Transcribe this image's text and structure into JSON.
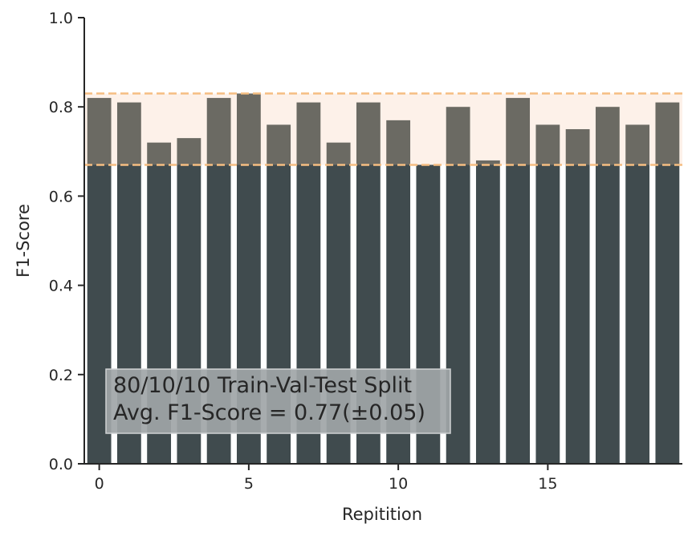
{
  "chart_data": {
    "type": "bar",
    "xlabel": "Repitition",
    "ylabel": "F1-Score",
    "ylim": [
      0,
      1.0
    ],
    "xlim": [
      -0.5,
      19.5
    ],
    "y_ticks": [
      0.0,
      0.2,
      0.4,
      0.6,
      0.8,
      1.0
    ],
    "y_tick_labels": [
      "0.0",
      "0.2",
      "0.4",
      "0.6",
      "0.8",
      "1.0"
    ],
    "x_ticks": [
      0,
      5,
      10,
      15
    ],
    "x_tick_labels": [
      "0",
      "5",
      "10",
      "15"
    ],
    "categories": [
      0,
      1,
      2,
      3,
      4,
      5,
      6,
      7,
      8,
      9,
      10,
      11,
      12,
      13,
      14,
      15,
      16,
      17,
      18,
      19
    ],
    "values": [
      0.82,
      0.81,
      0.72,
      0.73,
      0.82,
      0.83,
      0.76,
      0.81,
      0.72,
      0.81,
      0.77,
      0.67,
      0.8,
      0.68,
      0.82,
      0.76,
      0.75,
      0.8,
      0.76,
      0.81
    ],
    "band": {
      "lower": 0.67,
      "upper": 0.83
    },
    "annotation": {
      "line1": "80/10/10 Train-Val-Test Split",
      "line2": "Avg. F1-Score = 0.77(±0.05)"
    },
    "colors": {
      "bar": "#404b4e",
      "bar_above_band": "#6b6a63",
      "band_fill": "#fdf1e9",
      "band_line": "#f5be82",
      "annotation_box": "#a0a5a7",
      "axis": "#262626"
    },
    "grid": false
  }
}
